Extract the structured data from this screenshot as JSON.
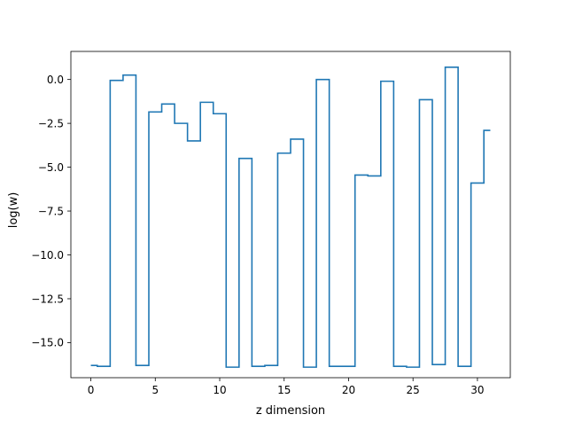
{
  "chart_data": {
    "type": "line",
    "drawstyle": "steps-mid",
    "title": "",
    "xlabel": "z dimension",
    "ylabel": "log(w)",
    "xlim": [
      -1.55,
      32.55
    ],
    "ylim": [
      -17.0,
      1.6
    ],
    "x_ticks": [
      0,
      5,
      10,
      15,
      20,
      25,
      30
    ],
    "x_tick_labels": [
      "0",
      "5",
      "10",
      "15",
      "20",
      "25",
      "30"
    ],
    "y_ticks": [
      0.0,
      -2.5,
      -5.0,
      -7.5,
      -10.0,
      -12.5,
      -15.0
    ],
    "y_tick_labels": [
      "0.0",
      "−2.5",
      "−5.0",
      "−7.5",
      "−10.0",
      "−12.5",
      "−15.0"
    ],
    "grid": false,
    "legend": "none",
    "series": [
      {
        "color": "#1f77b4",
        "x": [
          0,
          1,
          2,
          3,
          4,
          5,
          6,
          7,
          8,
          9,
          10,
          11,
          12,
          13,
          14,
          15,
          16,
          17,
          18,
          19,
          20,
          21,
          22,
          23,
          24,
          25,
          26,
          27,
          28,
          29,
          30,
          31
        ],
        "y": [
          -16.3,
          -16.35,
          -0.05,
          0.25,
          -16.3,
          -1.85,
          -1.4,
          -2.5,
          -3.5,
          -1.3,
          -1.95,
          -16.4,
          -4.5,
          -16.35,
          -16.3,
          -4.2,
          -3.4,
          -16.4,
          0.0,
          -16.35,
          -16.35,
          -5.45,
          -5.5,
          -0.1,
          -16.35,
          -16.4,
          -1.15,
          -16.25,
          0.7,
          -16.35,
          -5.9,
          -2.9
        ]
      }
    ]
  }
}
